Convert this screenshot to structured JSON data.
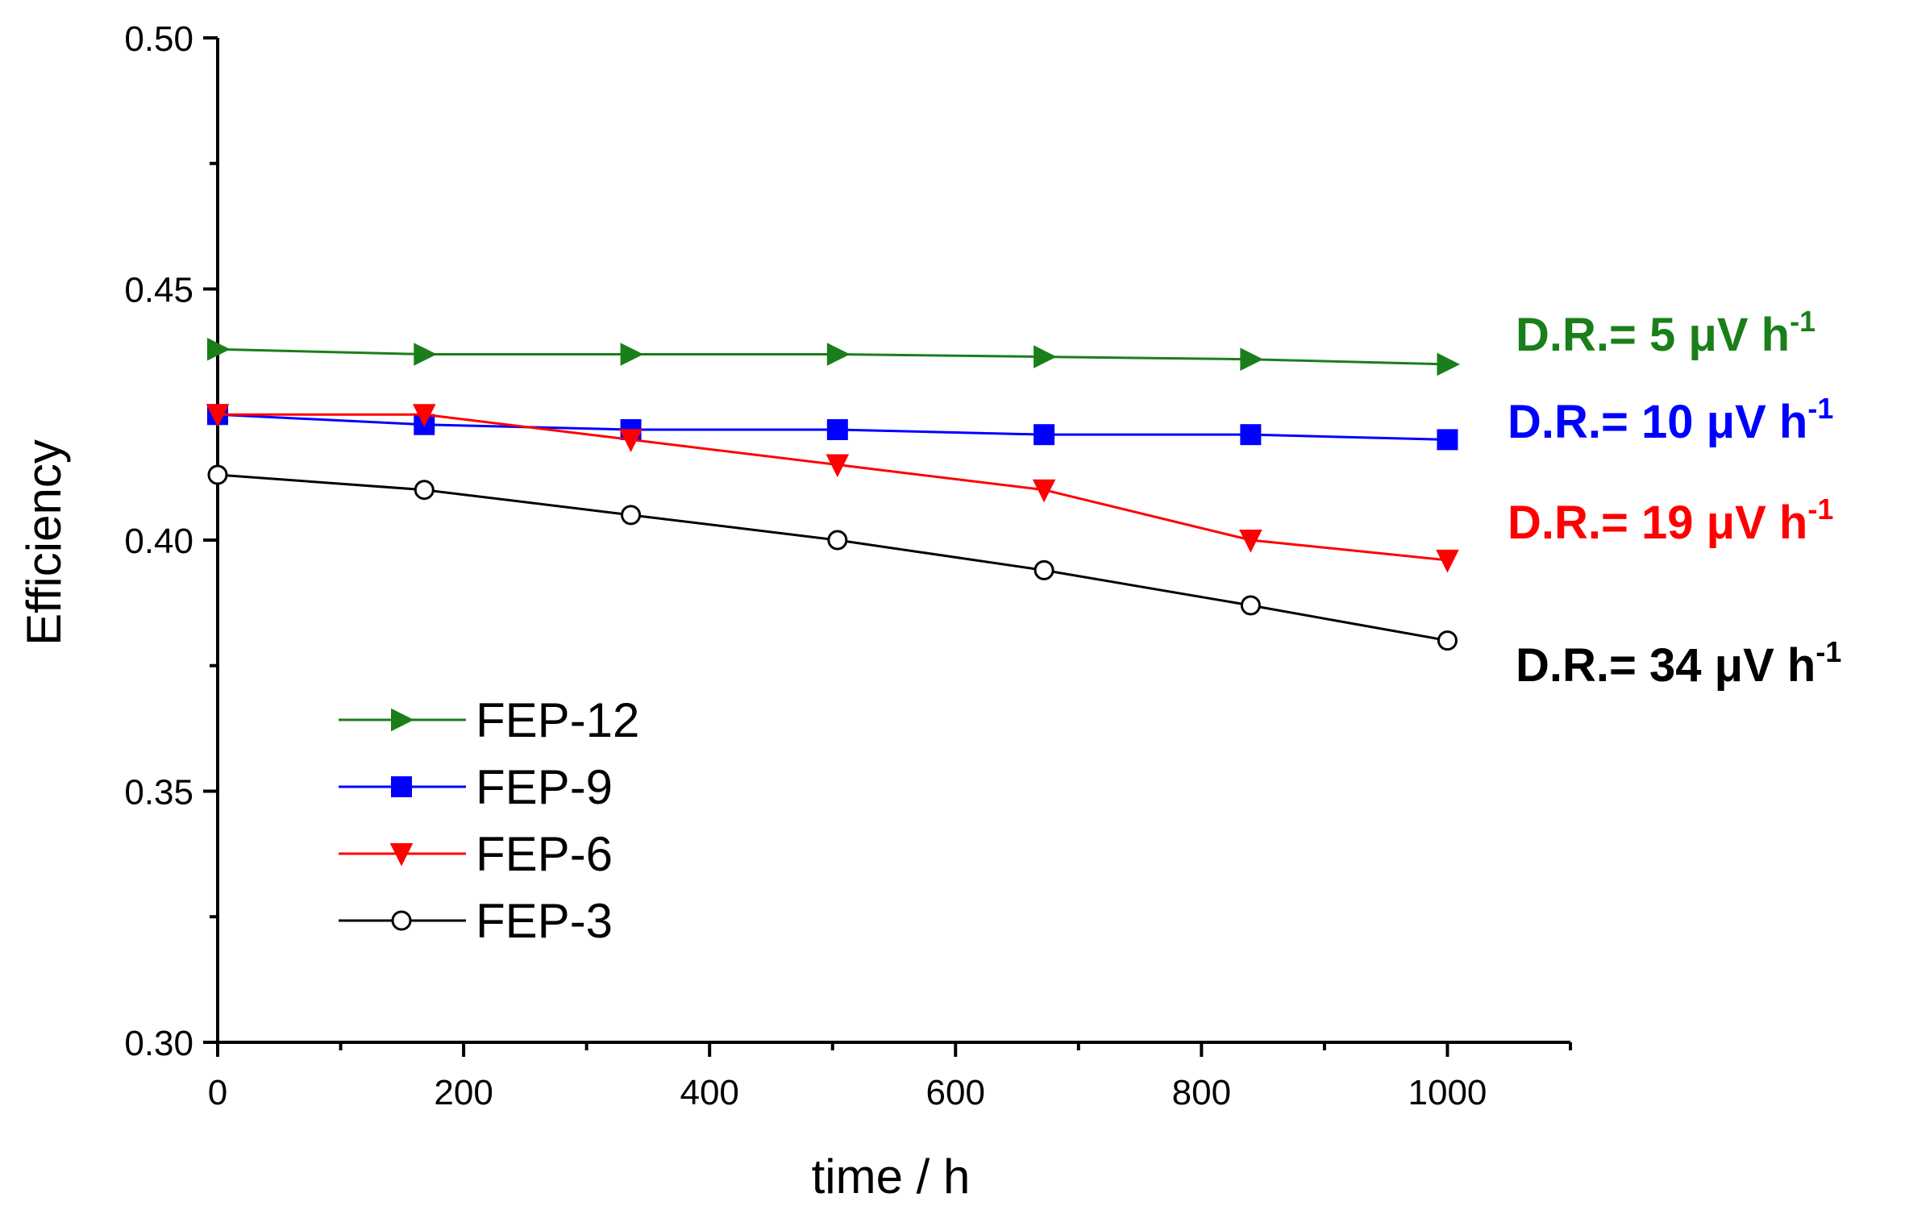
{
  "chart_data": {
    "type": "line",
    "title": "",
    "xlabel": "time / h",
    "ylabel": "Efficiency",
    "xlim": [
      0,
      1100
    ],
    "ylim": [
      0.3,
      0.5
    ],
    "xticks": [
      0,
      200,
      400,
      600,
      800,
      1000
    ],
    "xtick_labels": [
      "0",
      "200",
      "400",
      "600",
      "800",
      "1000"
    ],
    "xminor": [
      100,
      300,
      500,
      700,
      900,
      1100
    ],
    "yticks": [
      0.3,
      0.35,
      0.4,
      0.45,
      0.5
    ],
    "ytick_labels": [
      "0.30",
      "0.35",
      "0.40",
      "0.45",
      "0.50"
    ],
    "yminor": [
      0.325,
      0.375,
      0.425,
      0.475
    ],
    "grid": false,
    "legend_position": "bottom-left",
    "series": [
      {
        "name": "FEP-12",
        "color": "#1a7f1a",
        "marker": "triangle-right",
        "x": [
          0,
          168,
          336,
          504,
          672,
          840,
          1000
        ],
        "values": [
          0.438,
          0.437,
          0.437,
          0.437,
          0.4365,
          0.436,
          0.435
        ]
      },
      {
        "name": "FEP-9",
        "color": "#0000ff",
        "marker": "square",
        "x": [
          0,
          168,
          336,
          504,
          672,
          840,
          1000
        ],
        "values": [
          0.425,
          0.423,
          0.422,
          0.422,
          0.421,
          0.421,
          0.42
        ]
      },
      {
        "name": "FEP-6",
        "color": "#ff0000",
        "marker": "triangle-down",
        "x": [
          0,
          168,
          336,
          504,
          672,
          840,
          1000
        ],
        "values": [
          0.425,
          0.425,
          0.42,
          0.415,
          0.41,
          0.4,
          0.396
        ]
      },
      {
        "name": "FEP-3",
        "color": "#000000",
        "marker": "circle-open",
        "x": [
          0,
          168,
          336,
          504,
          672,
          840,
          1000
        ],
        "values": [
          0.413,
          0.41,
          0.405,
          0.4,
          0.394,
          0.387,
          0.38
        ]
      }
    ],
    "annotations": [
      {
        "text": "D.R.= 5 μV h",
        "sup": "-1",
        "color": "#1a7f1a"
      },
      {
        "text": "D.R.= 10 μV h",
        "sup": "-1",
        "color": "#0000ff"
      },
      {
        "text": "D.R.= 19 μV h",
        "sup": "-1",
        "color": "#ff0000"
      },
      {
        "text": "D.R.= 34 μV h",
        "sup": "-1",
        "color": "#000000"
      }
    ]
  }
}
